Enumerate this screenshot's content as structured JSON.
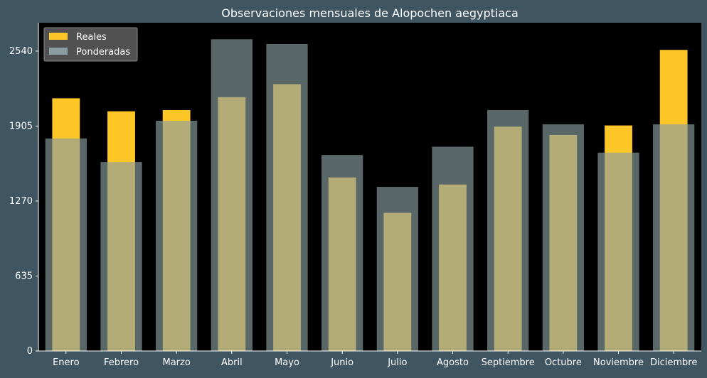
{
  "chart_data": {
    "type": "bar",
    "title": "Observaciones mensuales de Alopochen aegyptiaca",
    "xlabel": "",
    "ylabel": "",
    "categories": [
      "Enero",
      "Febrero",
      "Marzo",
      "Abril",
      "Mayo",
      "Junio",
      "Julio",
      "Agosto",
      "Septiembre",
      "Octubre",
      "Noviembre",
      "Diciembre"
    ],
    "series": [
      {
        "name": "Reales",
        "color": "#ffc627",
        "values": [
          2140,
          2030,
          2040,
          2150,
          2260,
          1470,
          1170,
          1410,
          1900,
          1830,
          1910,
          2550
        ]
      },
      {
        "name": "Ponderadas",
        "color": "#8a9ea2",
        "values": [
          1800,
          1600,
          1950,
          2640,
          2600,
          1660,
          1390,
          1730,
          2040,
          1920,
          1680,
          1920
        ]
      }
    ],
    "ylim": [
      0,
      2780
    ],
    "yticks": [
      "0",
      "635",
      "1270",
      "1905",
      "2540"
    ],
    "legend_position": "top-left",
    "grid": false,
    "background": "#000000",
    "figure_background": "#3f5561"
  }
}
